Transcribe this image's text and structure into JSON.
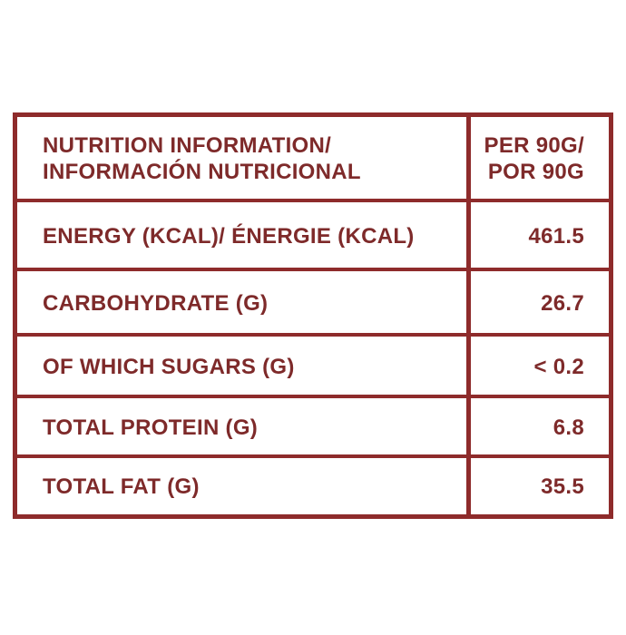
{
  "table": {
    "header": [
      [
        "NUTRITION INFORMATION/",
        "INFORMACIÓN NUTRICIONAL"
      ],
      [
        "PER 90G/",
        "POR 90G"
      ]
    ],
    "rows": [
      [
        "ENERGY (KCAL)/ ÉNERGIE (KCAL)",
        "461.5"
      ],
      [
        "CARBOHYDRATE (G)",
        "26.7"
      ],
      [
        "OF WHICH SUGARS (G)",
        "< 0.2"
      ],
      [
        "TOTAL PROTEIN (G)",
        "6.8"
      ],
      [
        "TOTAL FAT (G)",
        "35.5"
      ]
    ]
  }
}
